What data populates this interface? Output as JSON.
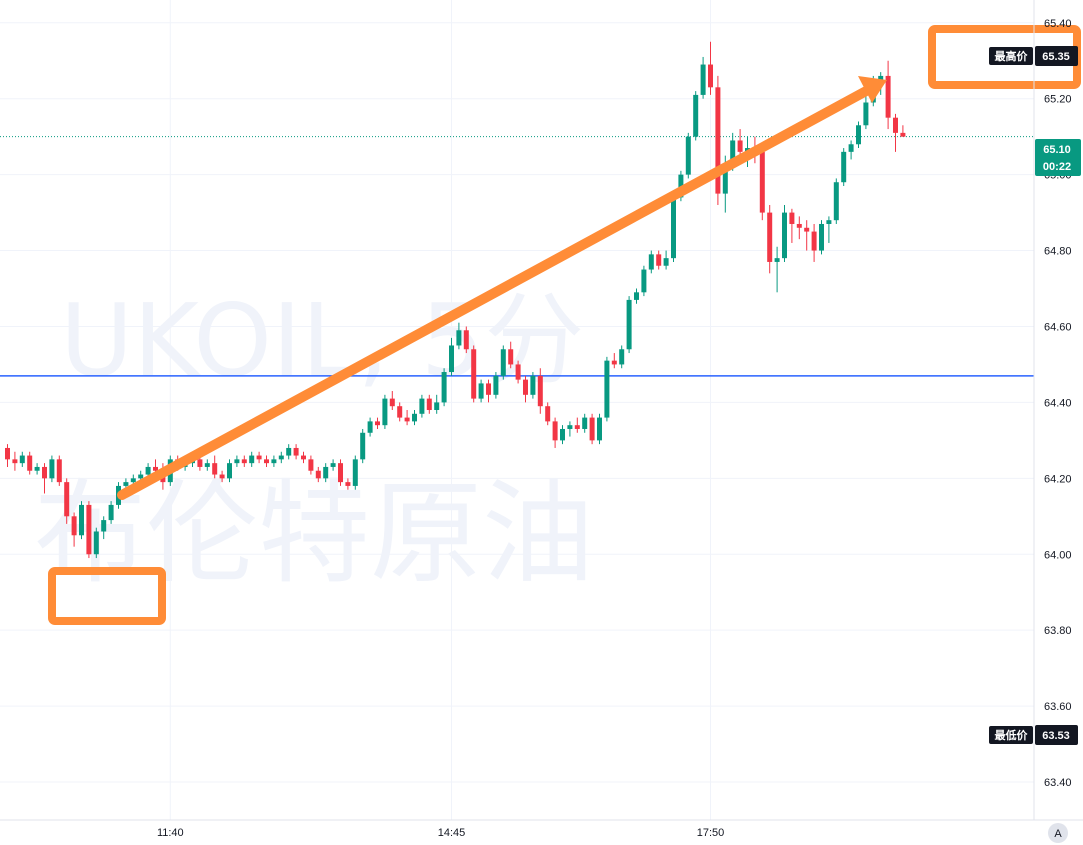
{
  "chart": {
    "watermark_symbol": "UKOIL, 5分",
    "watermark_name": "布伦特原油",
    "high_label": "最高价",
    "high_value": "65.35",
    "low_label": "最低价",
    "low_value": "63.53",
    "last_price": "65.10",
    "countdown": "00:22",
    "auto_scale_label": "A"
  },
  "colors": {
    "up": "#089981",
    "down": "#f23645",
    "level_line": "#2962ff",
    "annotation": "#ff8c37",
    "badge_dark": "#131722",
    "price_badge": "#089981"
  },
  "chart_data": {
    "type": "candlestick",
    "y_ticks": [
      "65.40",
      "65.20",
      "65.00",
      "64.80",
      "64.60",
      "64.40",
      "64.20",
      "64.00",
      "63.80",
      "63.60",
      "63.40"
    ],
    "ylim": [
      63.3,
      65.46
    ],
    "x_ticks": [
      {
        "label": "11:40",
        "index": 22
      },
      {
        "label": "14:45",
        "index": 60
      },
      {
        "label": "17:50",
        "index": 95
      }
    ],
    "horizontal_level": 64.47,
    "last_price": 65.1,
    "candles": [
      [
        64.28,
        64.29,
        64.23,
        64.25
      ],
      [
        64.25,
        64.27,
        64.22,
        64.24
      ],
      [
        64.24,
        64.27,
        64.23,
        64.26
      ],
      [
        64.26,
        64.27,
        64.21,
        64.22
      ],
      [
        64.22,
        64.24,
        64.21,
        64.23
      ],
      [
        64.23,
        64.24,
        64.16,
        64.2
      ],
      [
        64.2,
        64.26,
        64.19,
        64.25
      ],
      [
        64.25,
        64.26,
        64.18,
        64.19
      ],
      [
        64.19,
        64.2,
        64.08,
        64.1
      ],
      [
        64.1,
        64.11,
        64.02,
        64.05
      ],
      [
        64.05,
        64.14,
        64.04,
        64.13
      ],
      [
        64.13,
        64.14,
        63.99,
        64.0
      ],
      [
        64.0,
        64.07,
        63.99,
        64.06
      ],
      [
        64.06,
        64.1,
        64.04,
        64.09
      ],
      [
        64.09,
        64.14,
        64.08,
        64.13
      ],
      [
        64.13,
        64.19,
        64.12,
        64.18
      ],
      [
        64.18,
        64.2,
        64.16,
        64.19
      ],
      [
        64.19,
        64.21,
        64.18,
        64.2
      ],
      [
        64.2,
        64.22,
        64.19,
        64.21
      ],
      [
        64.21,
        64.24,
        64.2,
        64.23
      ],
      [
        64.23,
        64.25,
        64.21,
        64.22
      ],
      [
        64.22,
        64.24,
        64.17,
        64.19
      ],
      [
        64.19,
        64.26,
        64.18,
        64.25
      ],
      [
        64.25,
        64.26,
        64.22,
        64.23
      ],
      [
        64.23,
        64.25,
        64.22,
        64.24
      ],
      [
        64.24,
        64.26,
        64.23,
        64.25
      ],
      [
        64.25,
        64.26,
        64.22,
        64.23
      ],
      [
        64.23,
        64.25,
        64.22,
        64.24
      ],
      [
        64.24,
        64.26,
        64.2,
        64.21
      ],
      [
        64.21,
        64.22,
        64.19,
        64.2
      ],
      [
        64.2,
        64.25,
        64.19,
        64.24
      ],
      [
        64.24,
        64.26,
        64.23,
        64.25
      ],
      [
        64.25,
        64.26,
        64.23,
        64.24
      ],
      [
        64.24,
        64.27,
        64.23,
        64.26
      ],
      [
        64.26,
        64.27,
        64.24,
        64.25
      ],
      [
        64.25,
        64.26,
        64.23,
        64.24
      ],
      [
        64.24,
        64.26,
        64.23,
        64.25
      ],
      [
        64.25,
        64.27,
        64.24,
        64.26
      ],
      [
        64.26,
        64.29,
        64.25,
        64.28
      ],
      [
        64.28,
        64.29,
        64.25,
        64.26
      ],
      [
        64.26,
        64.27,
        64.24,
        64.25
      ],
      [
        64.25,
        64.26,
        64.21,
        64.22
      ],
      [
        64.22,
        64.23,
        64.19,
        64.2
      ],
      [
        64.2,
        64.24,
        64.19,
        64.23
      ],
      [
        64.23,
        64.25,
        64.22,
        64.24
      ],
      [
        64.24,
        64.25,
        64.18,
        64.19
      ],
      [
        64.19,
        64.2,
        64.17,
        64.18
      ],
      [
        64.18,
        64.26,
        64.17,
        64.25
      ],
      [
        64.25,
        64.33,
        64.24,
        64.32
      ],
      [
        64.32,
        64.36,
        64.31,
        64.35
      ],
      [
        64.35,
        64.36,
        64.33,
        64.34
      ],
      [
        64.34,
        64.42,
        64.33,
        64.41
      ],
      [
        64.41,
        64.43,
        64.38,
        64.39
      ],
      [
        64.39,
        64.4,
        64.35,
        64.36
      ],
      [
        64.36,
        64.38,
        64.34,
        64.35
      ],
      [
        64.35,
        64.38,
        64.34,
        64.37
      ],
      [
        64.37,
        64.42,
        64.36,
        64.41
      ],
      [
        64.41,
        64.42,
        64.37,
        64.38
      ],
      [
        64.38,
        64.42,
        64.37,
        64.4
      ],
      [
        64.4,
        64.49,
        64.39,
        64.48
      ],
      [
        64.48,
        64.57,
        64.47,
        64.55
      ],
      [
        64.55,
        64.61,
        64.54,
        64.59
      ],
      [
        64.59,
        64.6,
        64.53,
        64.54
      ],
      [
        64.54,
        64.55,
        64.4,
        64.41
      ],
      [
        64.41,
        64.46,
        64.4,
        64.45
      ],
      [
        64.45,
        64.46,
        64.4,
        64.42
      ],
      [
        64.42,
        64.48,
        64.41,
        64.47
      ],
      [
        64.47,
        64.55,
        64.46,
        64.54
      ],
      [
        64.54,
        64.56,
        64.49,
        64.5
      ],
      [
        64.5,
        64.51,
        64.45,
        64.46
      ],
      [
        64.46,
        64.47,
        64.4,
        64.42
      ],
      [
        64.42,
        64.48,
        64.41,
        64.47
      ],
      [
        64.47,
        64.49,
        64.37,
        64.39
      ],
      [
        64.39,
        64.4,
        64.34,
        64.35
      ],
      [
        64.35,
        64.36,
        64.28,
        64.3
      ],
      [
        64.3,
        64.34,
        64.29,
        64.33
      ],
      [
        64.33,
        64.35,
        64.31,
        64.34
      ],
      [
        64.34,
        64.36,
        64.32,
        64.33
      ],
      [
        64.33,
        64.37,
        64.32,
        64.36
      ],
      [
        64.36,
        64.37,
        64.29,
        64.3
      ],
      [
        64.3,
        64.37,
        64.29,
        64.36
      ],
      [
        64.36,
        64.52,
        64.35,
        64.51
      ],
      [
        64.51,
        64.53,
        64.49,
        64.5
      ],
      [
        64.5,
        64.55,
        64.49,
        64.54
      ],
      [
        64.54,
        64.68,
        64.53,
        64.67
      ],
      [
        64.67,
        64.7,
        64.66,
        64.69
      ],
      [
        64.69,
        64.76,
        64.68,
        64.75
      ],
      [
        64.75,
        64.8,
        64.74,
        64.79
      ],
      [
        64.79,
        64.8,
        64.75,
        64.76
      ],
      [
        64.76,
        64.8,
        64.75,
        64.78
      ],
      [
        64.78,
        64.95,
        64.77,
        64.94
      ],
      [
        64.94,
        65.01,
        64.93,
        65.0
      ],
      [
        65.0,
        65.11,
        64.99,
        65.1
      ],
      [
        65.1,
        65.22,
        65.09,
        65.21
      ],
      [
        65.21,
        65.31,
        65.2,
        65.29
      ],
      [
        65.29,
        65.35,
        65.21,
        65.23
      ],
      [
        65.23,
        65.26,
        64.92,
        64.95
      ],
      [
        64.95,
        65.05,
        64.9,
        65.02
      ],
      [
        65.02,
        65.11,
        65.01,
        65.09
      ],
      [
        65.09,
        65.12,
        65.04,
        65.06
      ],
      [
        65.06,
        65.1,
        65.02,
        65.07
      ],
      [
        65.07,
        65.1,
        65.03,
        65.06
      ],
      [
        65.06,
        65.08,
        64.88,
        64.9
      ],
      [
        64.9,
        64.92,
        64.74,
        64.77
      ],
      [
        64.77,
        64.81,
        64.69,
        64.78
      ],
      [
        64.78,
        64.92,
        64.77,
        64.9
      ],
      [
        64.9,
        64.91,
        64.82,
        64.87
      ],
      [
        64.87,
        64.89,
        64.83,
        64.86
      ],
      [
        64.86,
        64.88,
        64.8,
        64.85
      ],
      [
        64.85,
        64.87,
        64.77,
        64.8
      ],
      [
        64.8,
        64.88,
        64.79,
        64.87
      ],
      [
        64.87,
        64.89,
        64.82,
        64.88
      ],
      [
        64.88,
        64.99,
        64.87,
        64.98
      ],
      [
        64.98,
        65.07,
        64.97,
        65.06
      ],
      [
        65.06,
        65.09,
        65.04,
        65.08
      ],
      [
        65.08,
        65.14,
        65.07,
        65.13
      ],
      [
        65.13,
        65.21,
        65.12,
        65.19
      ],
      [
        65.19,
        65.26,
        65.18,
        65.25
      ],
      [
        65.25,
        65.27,
        65.21,
        65.26
      ],
      [
        65.26,
        65.3,
        65.12,
        65.15
      ],
      [
        65.15,
        65.16,
        65.06,
        65.11
      ],
      [
        65.11,
        65.13,
        65.1,
        65.1
      ]
    ]
  }
}
